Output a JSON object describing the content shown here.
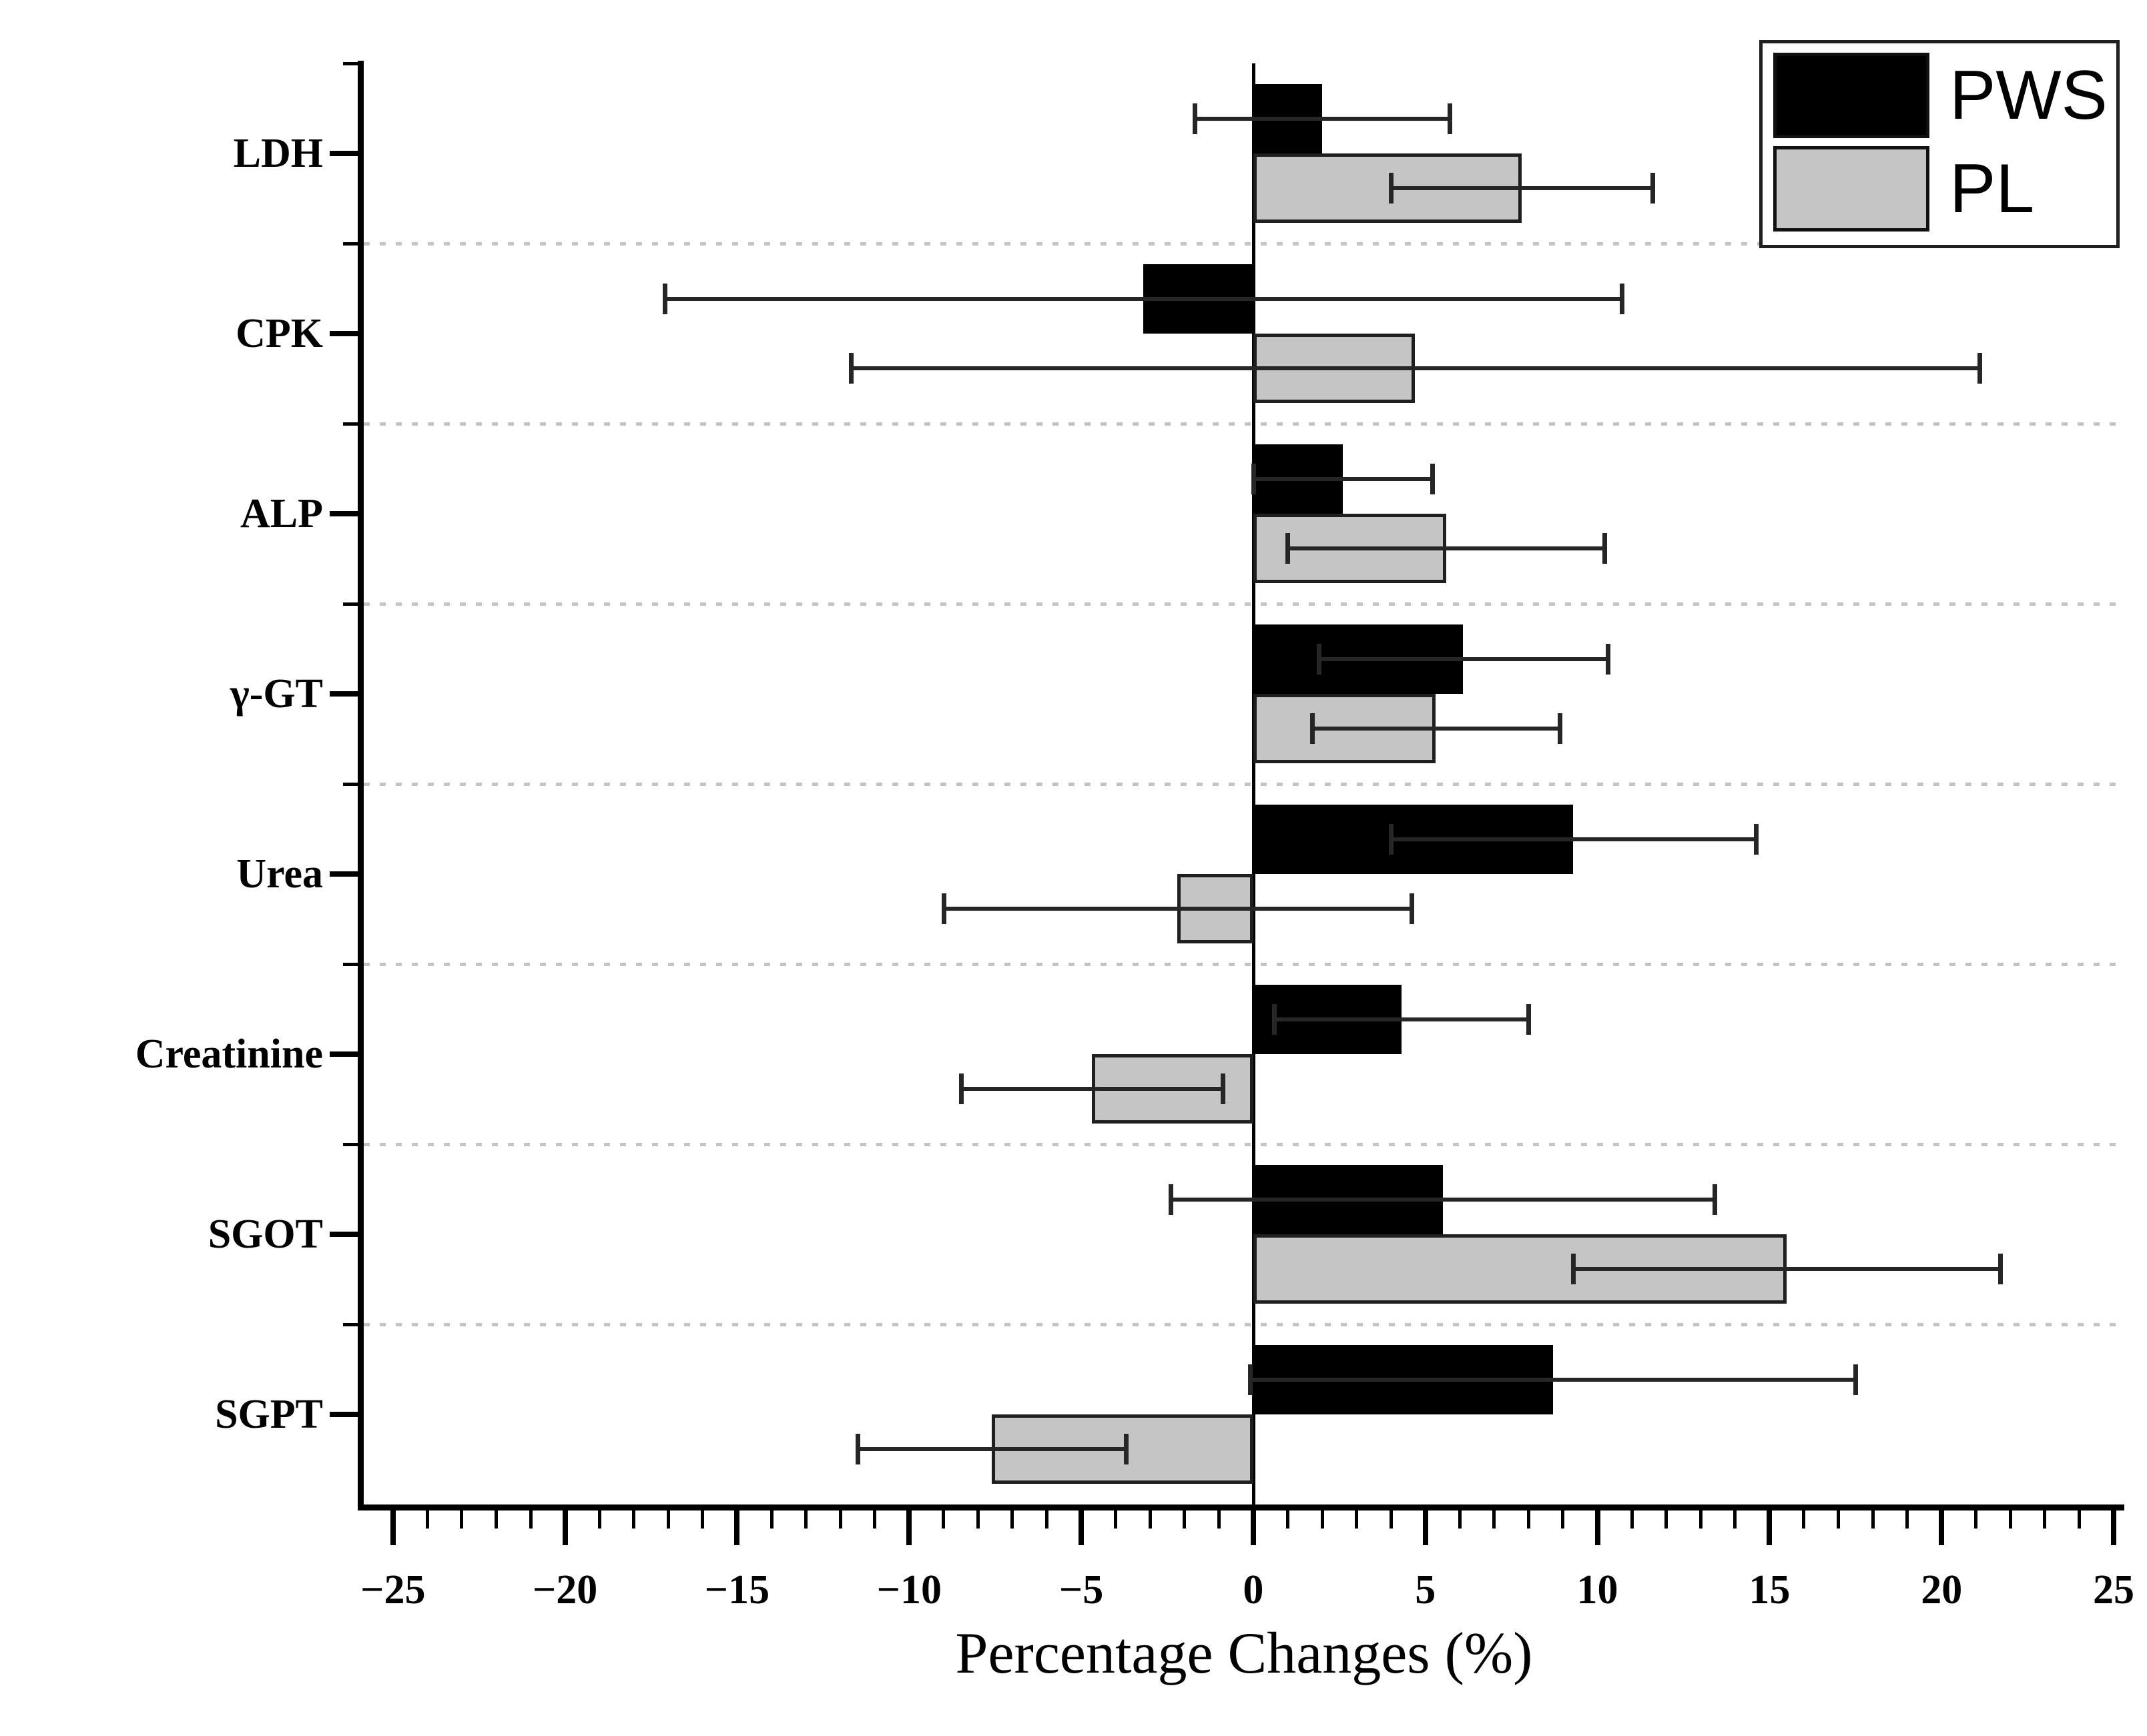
{
  "chart_data": {
    "type": "bar",
    "orientation": "horizontal",
    "title": "",
    "xlabel": "Percentage Changes (%)",
    "categories": [
      "LDH",
      "CPK",
      "ALP",
      "γ-GT",
      "Urea",
      "Creatinine",
      "SGOT",
      "SGPT"
    ],
    "series": [
      {
        "name": "PWS",
        "color": "#000000",
        "values": [
          2.0,
          -3.2,
          2.6,
          6.1,
          9.3,
          4.3,
          5.5,
          8.7
        ],
        "errors": [
          3.7,
          13.9,
          2.6,
          4.2,
          5.3,
          3.7,
          7.9,
          8.8
        ]
      },
      {
        "name": "PL",
        "color": "#c5c5c5",
        "values": [
          7.8,
          4.7,
          5.6,
          5.3,
          -2.2,
          -4.7,
          15.5,
          -7.6
        ],
        "errors": [
          3.8,
          16.4,
          4.6,
          3.6,
          6.8,
          3.8,
          6.2,
          3.9
        ]
      }
    ],
    "xlim": [
      -25.85,
      25.31
    ],
    "xticks": [
      -25,
      -20,
      -15,
      -10,
      -5,
      0,
      5,
      10,
      15,
      20,
      25
    ],
    "minor_tick_step": 1,
    "grid": "horizontal dashed separators between categories",
    "legend_position": "top-right",
    "error_bars": "symmetric with end caps"
  },
  "axis": {
    "x_title": "Percentage Changes (%)",
    "x_tick_labels": [
      "−25",
      "−20",
      "−15",
      "−10",
      "−5",
      "0",
      "5",
      "10",
      "15",
      "20",
      "25"
    ]
  },
  "legend": {
    "items": [
      {
        "label": "PWS",
        "color": "#000000"
      },
      {
        "label": "PL",
        "color": "#c5c5c5"
      }
    ]
  },
  "colors": {
    "bar_black": "#000000",
    "bar_gray": "#c5c5c5",
    "bar_gray_border": "#1f1f1f",
    "error_bar": "#262626",
    "gridline": "#c3c3c3",
    "axis": "#000000",
    "background": "#ffffff"
  }
}
